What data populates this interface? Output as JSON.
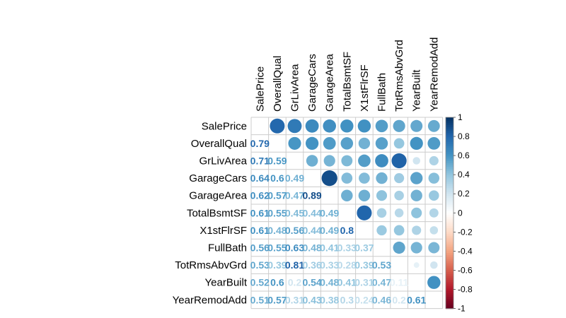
{
  "chart_data": {
    "type": "heatmap",
    "subtype": "corrplot-mixed",
    "variables": [
      "SalePrice",
      "OverallQual",
      "GrLivArea",
      "GarageCars",
      "GarageArea",
      "TotalBsmtSF",
      "X1stFlrSF",
      "FullBath",
      "TotRmsAbvGrd",
      "YearBuilt",
      "YearRemodAdd"
    ],
    "lower_display_labels": [
      [],
      [
        "0.79"
      ],
      [
        "0.71",
        "0.59"
      ],
      [
        "0.64",
        "0.6",
        "0.49"
      ],
      [
        "0.62",
        "0.57",
        "0.47",
        "0.89"
      ],
      [
        "0.61",
        "0.55",
        "0.45",
        "0.44",
        "0.49"
      ],
      [
        "0.61",
        "0.48",
        "0.56",
        "0.44",
        "0.49",
        "0.8"
      ],
      [
        "0.56",
        "0.55",
        "0.63",
        "0.48",
        "0.41",
        "0.33",
        "0.37"
      ],
      [
        "0.53",
        "0.39",
        "0.81",
        "0.36",
        "0.33",
        "0.28",
        "0.39",
        "0.53"
      ],
      [
        "0.52",
        "0.6",
        "0.2",
        "0.54",
        "0.48",
        "0.41",
        "0.31",
        "0.47",
        "0.11"
      ],
      [
        "0.51",
        "0.57",
        "0.31",
        "0.43",
        "0.38",
        "0.3",
        "0.24",
        "0.46",
        "0.2",
        "0.61"
      ]
    ],
    "correlations": [
      [
        1.0,
        0.79,
        0.71,
        0.64,
        0.62,
        0.61,
        0.61,
        0.56,
        0.53,
        0.52,
        0.51
      ],
      [
        0.79,
        1.0,
        0.59,
        0.6,
        0.57,
        0.55,
        0.48,
        0.55,
        0.39,
        0.6,
        0.57
      ],
      [
        0.71,
        0.59,
        1.0,
        0.49,
        0.47,
        0.45,
        0.56,
        0.63,
        0.81,
        0.2,
        0.31
      ],
      [
        0.64,
        0.6,
        0.49,
        1.0,
        0.89,
        0.44,
        0.44,
        0.48,
        0.36,
        0.54,
        0.43
      ],
      [
        0.62,
        0.57,
        0.47,
        0.89,
        1.0,
        0.49,
        0.49,
        0.41,
        0.33,
        0.48,
        0.38
      ],
      [
        0.61,
        0.55,
        0.45,
        0.44,
        0.49,
        1.0,
        0.8,
        0.33,
        0.28,
        0.41,
        0.3
      ],
      [
        0.61,
        0.48,
        0.56,
        0.44,
        0.49,
        0.8,
        1.0,
        0.37,
        0.39,
        0.31,
        0.24
      ],
      [
        0.56,
        0.55,
        0.63,
        0.48,
        0.41,
        0.33,
        0.37,
        1.0,
        0.53,
        0.47,
        0.46
      ],
      [
        0.53,
        0.39,
        0.81,
        0.36,
        0.33,
        0.28,
        0.39,
        0.53,
        1.0,
        0.11,
        0.2
      ],
      [
        0.52,
        0.6,
        0.2,
        0.54,
        0.48,
        0.41,
        0.31,
        0.47,
        0.11,
        1.0,
        0.61
      ],
      [
        0.51,
        0.57,
        0.31,
        0.43,
        0.38,
        0.3,
        0.24,
        0.46,
        0.2,
        0.61,
        1.0
      ]
    ],
    "upper_shape": "circle",
    "lower_shape": "number",
    "diagonal": "blank",
    "colorbar": {
      "range": [
        -1,
        1
      ],
      "ticks": [
        "1",
        "0.8",
        "0.6",
        "0.4",
        "0.2",
        "0",
        "-0.2",
        "-0.4",
        "-0.6",
        "-0.8",
        "-1"
      ],
      "colors": [
        "#67001F",
        "#B2182B",
        "#D6604D",
        "#F4A582",
        "#FDDBC7",
        "#FFFFFF",
        "#D1E5F0",
        "#92C5DE",
        "#4393C3",
        "#2166AC",
        "#053061"
      ]
    },
    "grid": true
  }
}
